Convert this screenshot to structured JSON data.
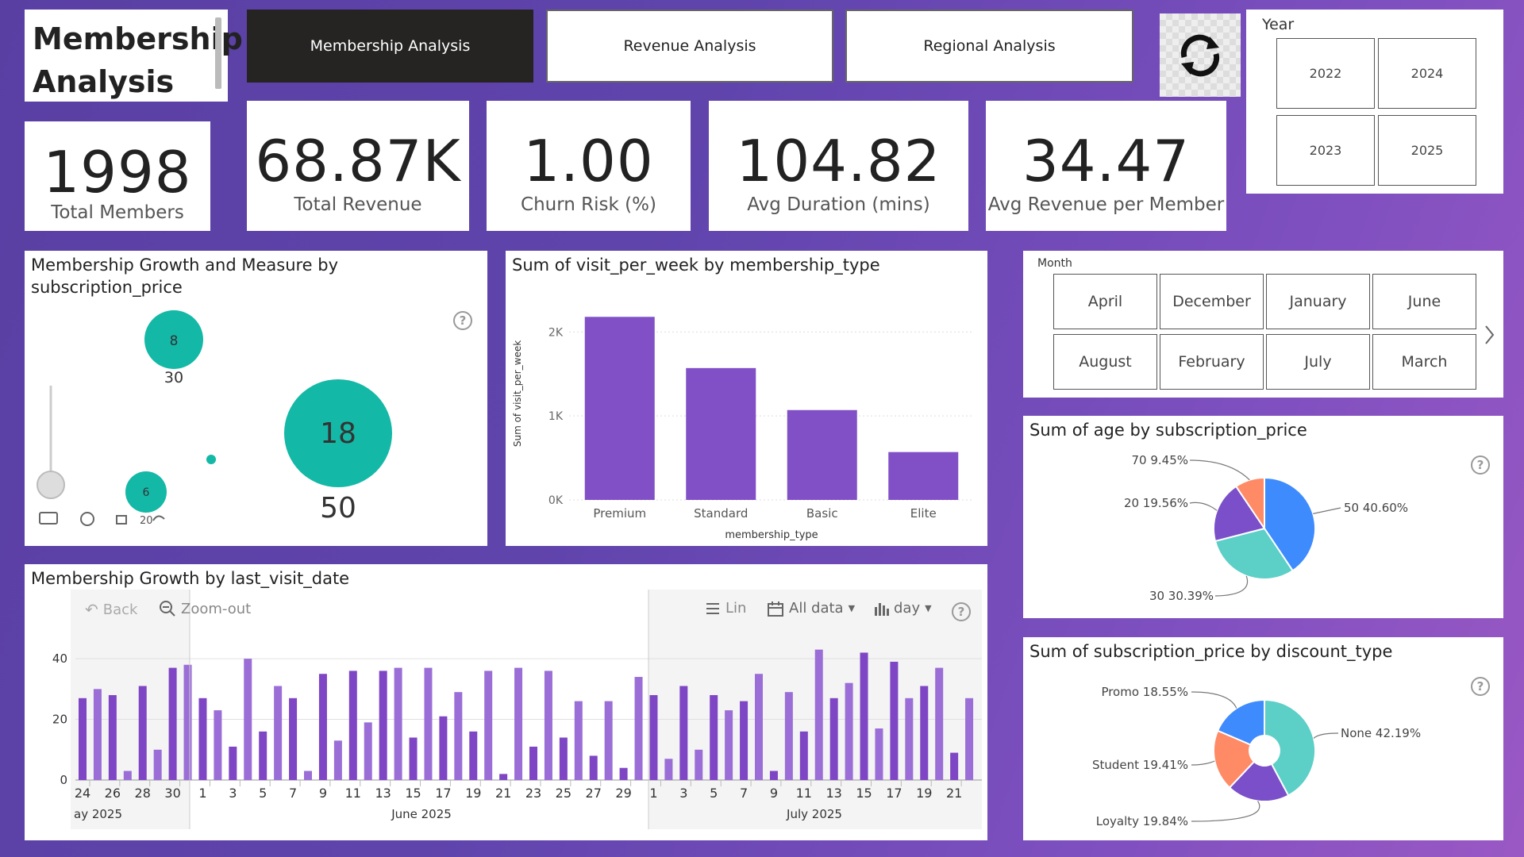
{
  "page_title": "Membership Analysis",
  "nav": {
    "membership": "Membership Analysis",
    "revenue": "Revenue Analysis",
    "regional": "Regional Analysis"
  },
  "year_slicer": {
    "title": "Year",
    "options": [
      "2022",
      "2024",
      "2023",
      "2025"
    ]
  },
  "kpis": [
    {
      "value": "1998",
      "label": "Total Members"
    },
    {
      "value": "68.87K",
      "label": "Total Revenue"
    },
    {
      "value": "1.00",
      "label": "Churn Risk (%)"
    },
    {
      "value": "104.82",
      "label": "Avg Duration (mins)"
    },
    {
      "value": "34.47",
      "label": "Avg Revenue per Member"
    }
  ],
  "month_slicer": {
    "title": "Month",
    "options": [
      "April",
      "December",
      "January",
      "June",
      "August",
      "February",
      "July",
      "March"
    ]
  },
  "bubble_chart": {
    "title": "Membership Growth and Measure by subscription_price",
    "play_axis_label": "20",
    "bubbles": [
      {
        "value": "8",
        "label": "30"
      },
      {
        "value": "18",
        "label": "50"
      },
      {
        "value": "6",
        "label": ""
      },
      {
        "value": "",
        "label": ""
      }
    ]
  },
  "visits_chart": {
    "title": "Sum of visit_per_week by membership_type",
    "chart_data": {
      "type": "bar",
      "categories": [
        "Premium",
        "Standard",
        "Basic",
        "Elite"
      ],
      "values": [
        2180,
        1570,
        1070,
        570
      ],
      "xlabel": "membership_type",
      "ylabel": "Sum of visit_per_week",
      "yticks": [
        "0K",
        "1K",
        "2K"
      ],
      "ylim": [
        0,
        2400
      ]
    }
  },
  "age_pie": {
    "title": "Sum of age by subscription_price",
    "chart_data": {
      "type": "pie",
      "labels": [
        "50",
        "30",
        "20",
        "70"
      ],
      "values": [
        40.6,
        30.39,
        19.56,
        9.45
      ],
      "display": [
        "50 40.60%",
        "30 30.39%",
        "20 19.56%",
        "70 9.45%"
      ],
      "colors": [
        "#3d8bfd",
        "#5ccfc7",
        "#7a4fc9",
        "#ff8a66"
      ]
    }
  },
  "discount_donut": {
    "title": "Sum of subscription_price by discount_type",
    "chart_data": {
      "type": "pie",
      "labels": [
        "None",
        "Loyalty",
        "Student",
        "Promo"
      ],
      "values": [
        42.19,
        19.84,
        19.41,
        18.55
      ],
      "display": [
        "None 42.19%",
        "Loyalty 19.84%",
        "Student 19.41%",
        "Promo 18.55%"
      ],
      "colors": [
        "#5ccfc7",
        "#7a4fc9",
        "#ff8a66",
        "#3d8bfd"
      ]
    }
  },
  "growth_chart": {
    "title": "Membership Growth by last_visit_date",
    "toolbar": {
      "back": "Back",
      "zoom": "Zoom-out",
      "lin": "Lin",
      "alldata": "All data",
      "day": "day"
    },
    "month_labels": [
      "ay 2025",
      "June 2025",
      "July 2025"
    ],
    "chart_data": {
      "type": "bar",
      "ylim": [
        0,
        45
      ],
      "yticks": [
        "0",
        "20",
        "40"
      ],
      "tick_labels": [
        "24",
        "26",
        "28",
        "30",
        "1",
        "3",
        "5",
        "7",
        "9",
        "11",
        "13",
        "15",
        "17",
        "19",
        "21",
        "23",
        "25",
        "27",
        "29",
        "1",
        "3",
        "5",
        "7",
        "9",
        "11",
        "13",
        "15",
        "17",
        "19",
        "21"
      ],
      "values": [
        27,
        30,
        28,
        3,
        31,
        10,
        37,
        38,
        27,
        23,
        11,
        40,
        16,
        31,
        27,
        3,
        35,
        13,
        36,
        19,
        36,
        37,
        14,
        37,
        21,
        29,
        16,
        36,
        2,
        37,
        11,
        36,
        14,
        26,
        8,
        26,
        4,
        34,
        28,
        7,
        31,
        10,
        28,
        23,
        26,
        35,
        3,
        29,
        16,
        43,
        27,
        32,
        42,
        17,
        39,
        27,
        31,
        37,
        9,
        27
      ]
    }
  }
}
